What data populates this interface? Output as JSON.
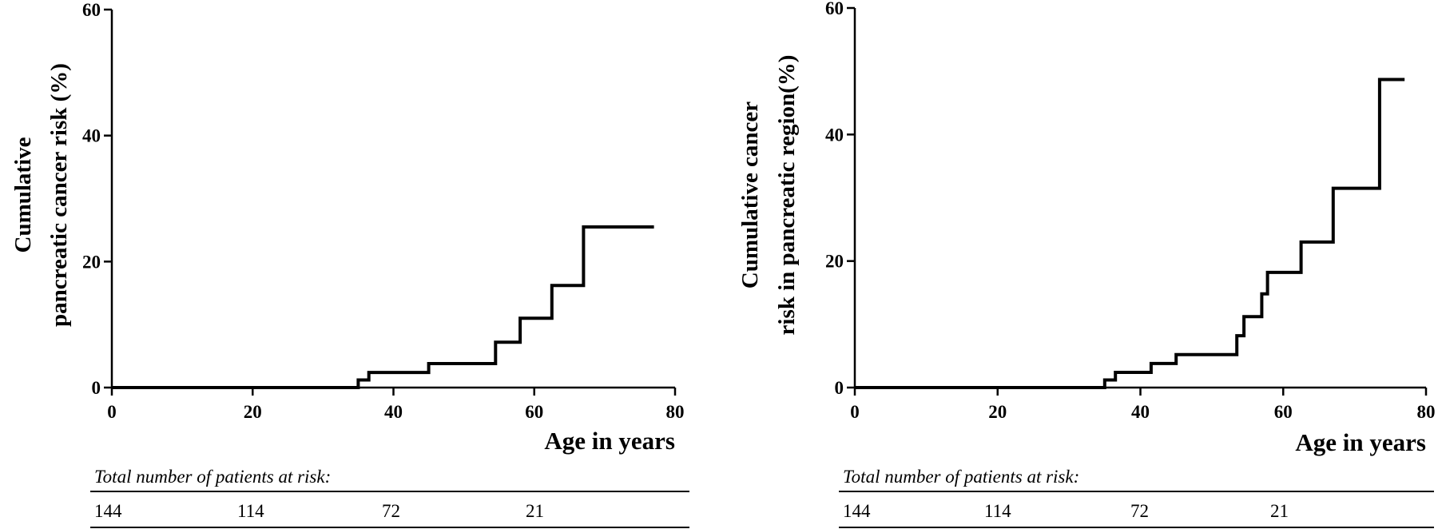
{
  "chart_data": [
    {
      "type": "line",
      "step": true,
      "title": "",
      "ylabel_lines": [
        "Cumulative",
        "pancreatic cancer risk (%)"
      ],
      "xlabel": "Age in years",
      "xlim": [
        0,
        80
      ],
      "ylim": [
        0,
        60
      ],
      "xticks": [
        "0",
        "20",
        "40",
        "60",
        "80"
      ],
      "yticks": [
        "0",
        "20",
        "40",
        "60"
      ],
      "grid": false,
      "series": [
        {
          "x": [
            0,
            35,
            35,
            36.5,
            36.5,
            45,
            45,
            54.5,
            54.5,
            58,
            58,
            62.5,
            62.5,
            67,
            67,
            77
          ],
          "y": [
            0,
            0,
            1.2,
            1.2,
            2.4,
            2.4,
            3.8,
            3.8,
            7.2,
            7.2,
            11,
            11,
            16.2,
            16.2,
            25.5,
            25.5
          ]
        }
      ],
      "risk_table": {
        "caption": "Total number of patients at risk:",
        "counts": [
          "144",
          "114",
          "72",
          "21"
        ]
      }
    },
    {
      "type": "line",
      "step": true,
      "title": "",
      "ylabel_lines": [
        "Cumulative cancer",
        "risk in pancreatic region(%)"
      ],
      "xlabel": "Age in years",
      "xlim": [
        0,
        80
      ],
      "ylim": [
        0,
        60
      ],
      "xticks": [
        "0",
        "20",
        "40",
        "60",
        "80"
      ],
      "yticks": [
        "0",
        "20",
        "40",
        "60"
      ],
      "grid": false,
      "series": [
        {
          "x": [
            0,
            35,
            35,
            36.5,
            36.5,
            41.5,
            41.5,
            45,
            45,
            53.5,
            53.5,
            54.5,
            54.5,
            57,
            57,
            57.8,
            57.8,
            62.5,
            62.5,
            67,
            67,
            73.5,
            73.5,
            77
          ],
          "y": [
            0,
            0,
            1.2,
            1.2,
            2.4,
            2.4,
            3.8,
            3.8,
            5.2,
            5.2,
            8.2,
            8.2,
            11.2,
            11.2,
            14.8,
            14.8,
            18.2,
            18.2,
            23,
            23,
            31.5,
            31.5,
            48.7,
            48.7
          ]
        }
      ],
      "risk_table": {
        "caption": "Total number of patients at risk:",
        "counts": [
          "144",
          "114",
          "72",
          "21"
        ]
      }
    }
  ]
}
